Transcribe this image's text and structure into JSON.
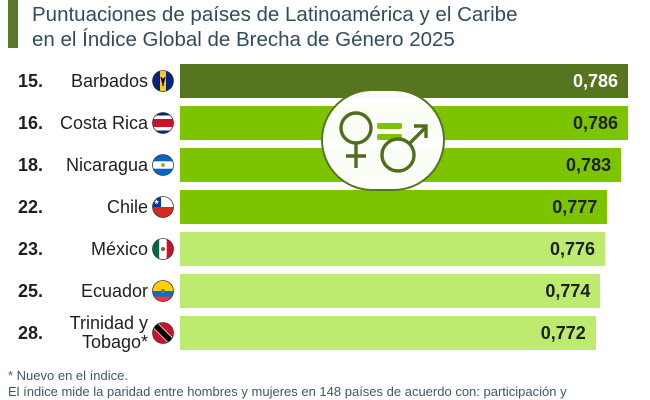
{
  "title": "Puntuaciones de países de Latinoamérica y el Caribe\nen el Índice Global de Brecha de Género 2025",
  "colors": {
    "accent": "#5a7a2a",
    "top": "#56751f",
    "mid": "#7cc400",
    "light": "#bdeb6f"
  },
  "chart_data": {
    "type": "bar",
    "orientation": "horizontal",
    "title": "Puntuaciones de países de Latinoamérica y el Caribe en el Índice Global de Brecha de Género 2025",
    "categories": [
      "Barbados",
      "Costa Rica",
      "Nicaragua",
      "Chile",
      "México",
      "Ecuador",
      "Trinidad y Tobago*"
    ],
    "ranks": [
      "15.",
      "16.",
      "18.",
      "22.",
      "23.",
      "25.",
      "28."
    ],
    "values": [
      0.786,
      0.786,
      0.783,
      0.777,
      0.776,
      0.774,
      0.772
    ],
    "labels": [
      "0,786",
      "0,786",
      "0,783",
      "0,777",
      "0,776",
      "0,774",
      "0,772"
    ],
    "bar_colors": [
      "#56751f",
      "#7cc400",
      "#7cc400",
      "#7cc400",
      "#bdeb6f",
      "#bdeb6f",
      "#bdeb6f"
    ],
    "flag_icons": [
      "barbados-flag-icon",
      "costa-rica-flag-icon",
      "nicaragua-flag-icon",
      "chile-flag-icon",
      "mexico-flag-icon",
      "ecuador-flag-icon",
      "trinidad-tobago-flag-icon"
    ]
  },
  "icons": {
    "overlay": "gender-equality-icon"
  },
  "footnotes": [
    "* Nuevo en el índice.",
    "El índice mide la paridad entre hombres y mujeres en 148 países de acuerdo con: participación y"
  ]
}
